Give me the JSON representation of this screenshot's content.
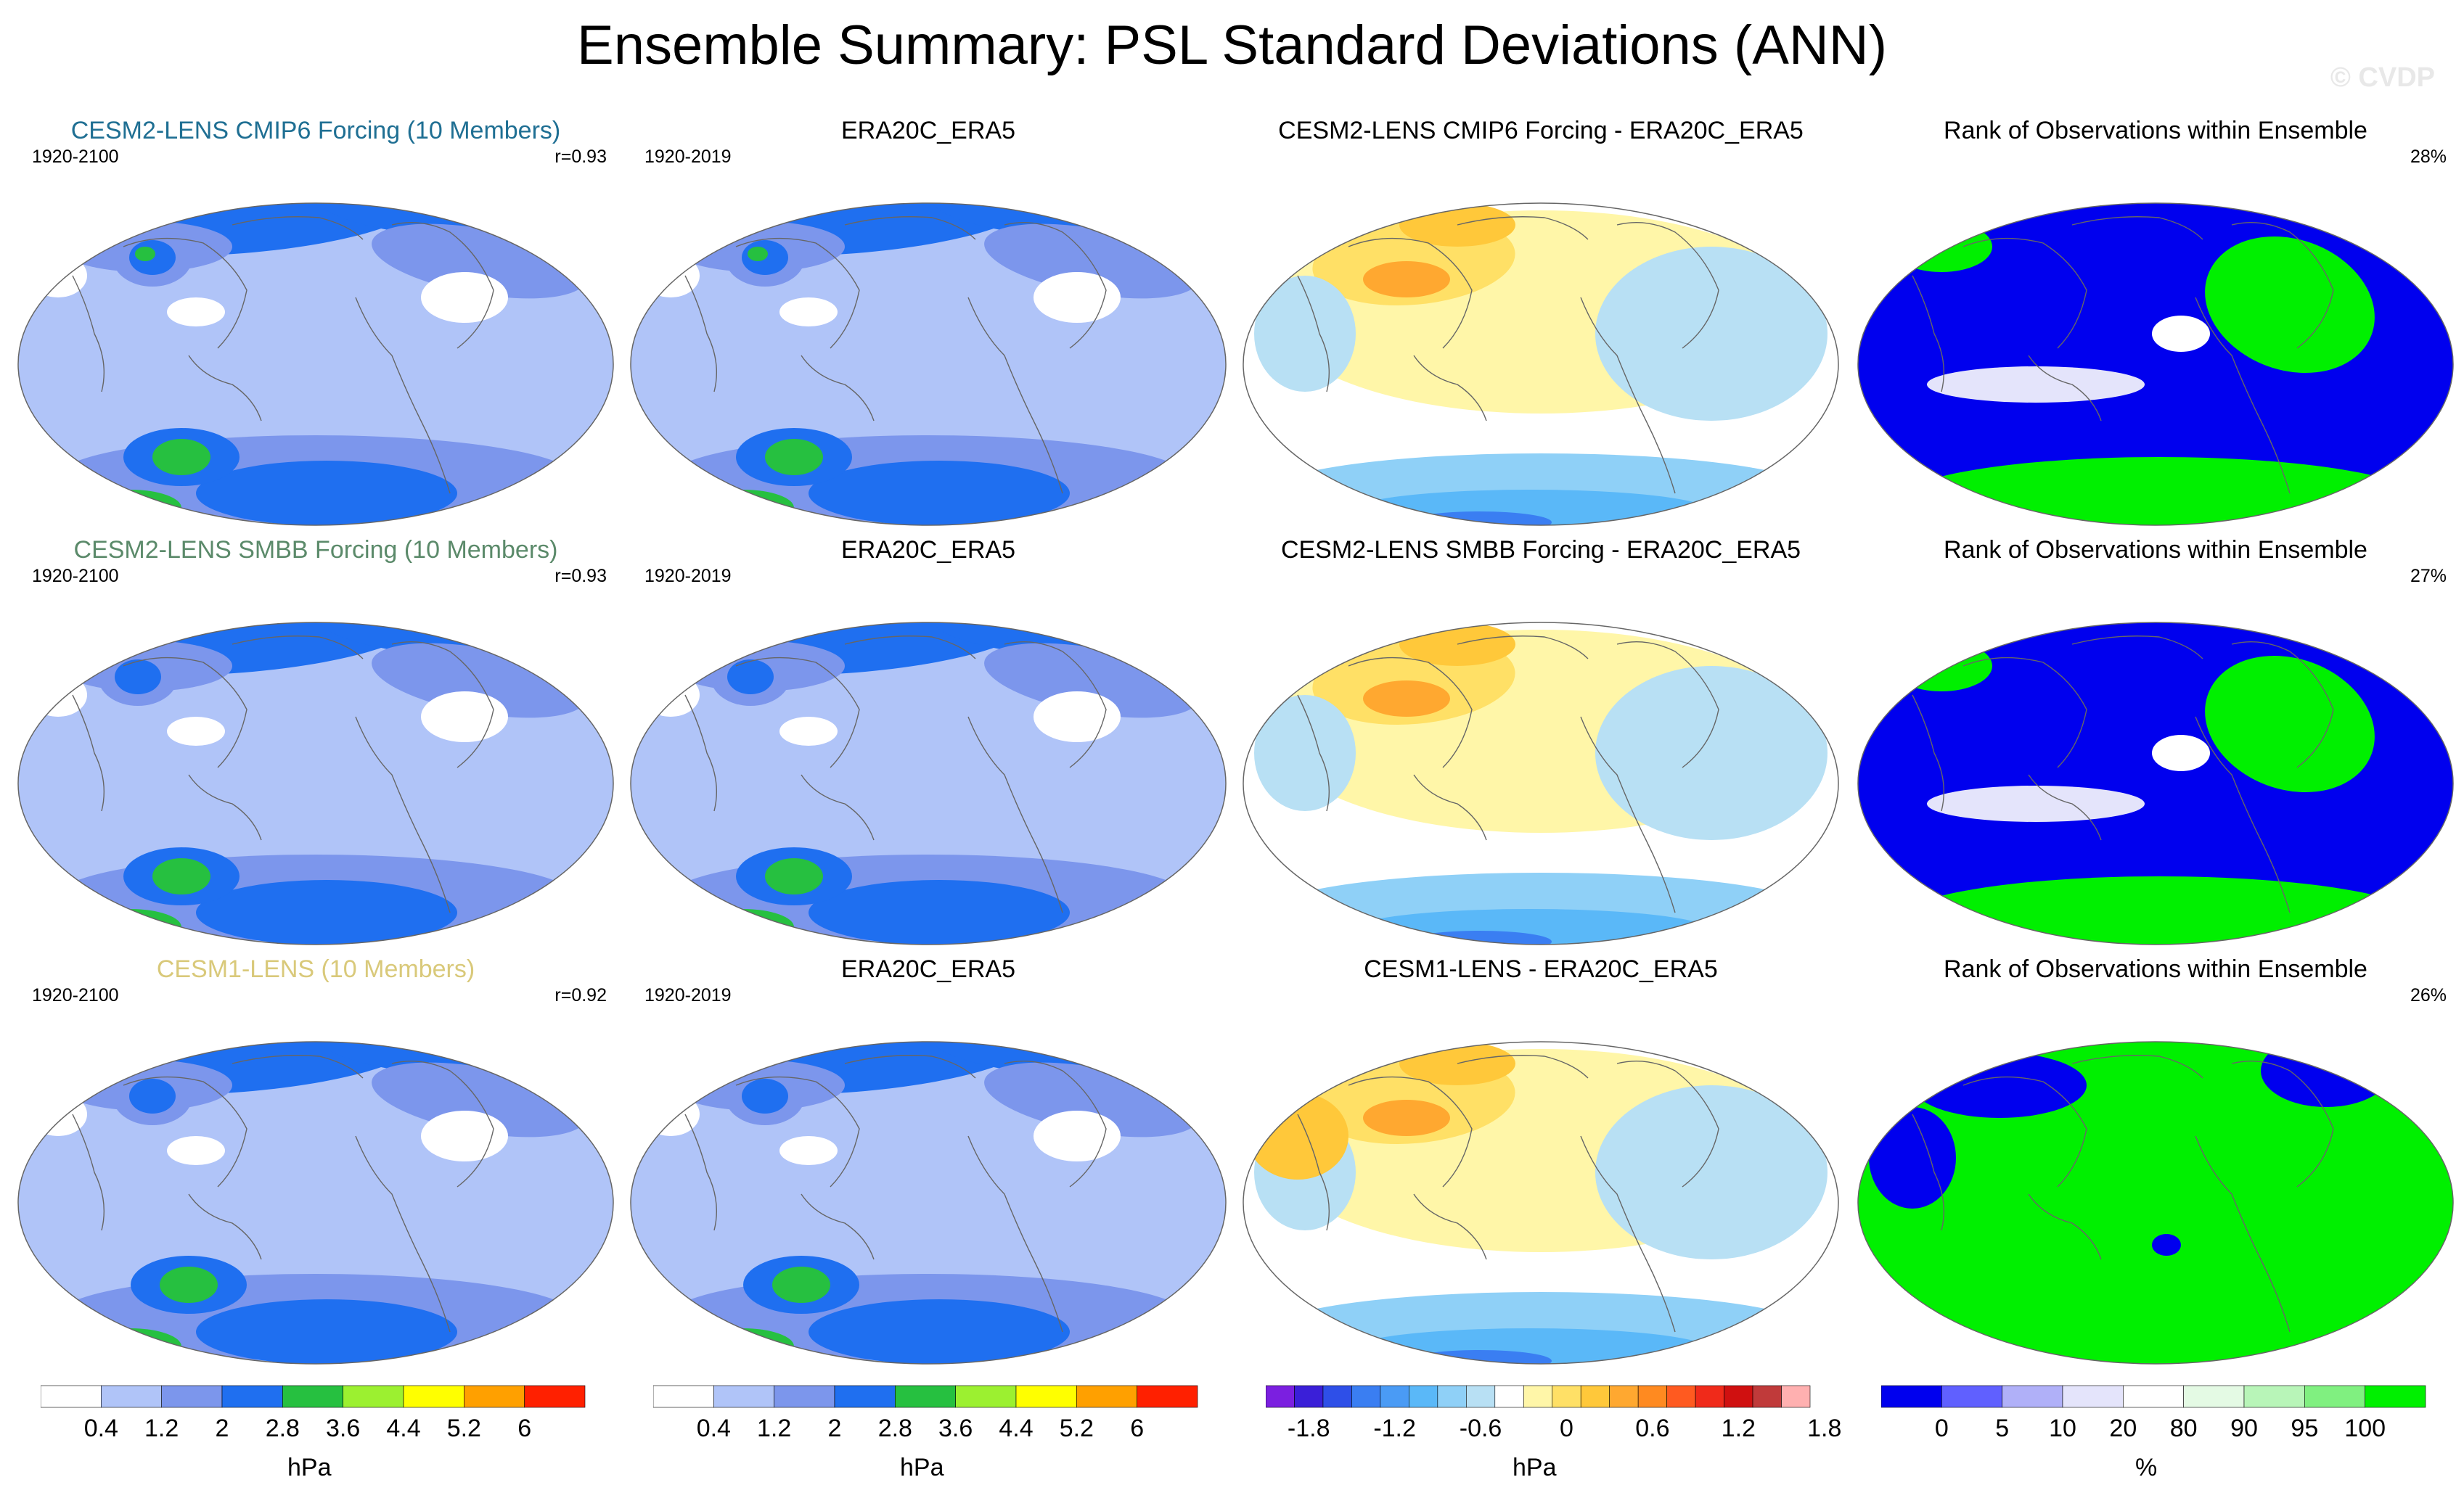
{
  "title": "Ensemble Summary: PSL Standard Deviations (ANN)",
  "watermark": "© CVDP",
  "colors": {
    "blue_title": "#1f6f93",
    "green_title": "#5b8a6a",
    "gold_title": "#d9c97a",
    "std": [
      "#ffffff",
      "#b0c4f8",
      "#7c96ec",
      "#1f6ff0",
      "#26c040",
      "#9cf030",
      "#ffff00",
      "#ffa000",
      "#ff2000"
    ],
    "diff": [
      "#7b1fe0",
      "#3a1fd8",
      "#2e4fe8",
      "#3a7ef2",
      "#4a9bf5",
      "#5ab8f8",
      "#8fd0f7",
      "#b8e0f4",
      "#ffffff",
      "#fff6a8",
      "#ffe066",
      "#ffc83a",
      "#ffa830",
      "#ff8a20",
      "#ff5a20",
      "#f02a1a",
      "#d01010",
      "#c03a3a",
      "#ffb0b0"
    ],
    "rank": [
      "#0000ee",
      "#6060ff",
      "#b0b0f8",
      "#e4e4fb",
      "#ffffff",
      "#e4fae4",
      "#b8f5b8",
      "#80f080",
      "#00f000"
    ]
  },
  "rows": [
    {
      "model": {
        "title": "CESM2-LENS CMIP6 Forcing (10 Members)",
        "period": "1920-2100",
        "corr": "r=0.93"
      },
      "obs": {
        "title": "ERA20C_ERA5",
        "period": "1920-2019"
      },
      "diff": {
        "title": "CESM2-LENS CMIP6 Forcing - ERA20C_ERA5"
      },
      "rank": {
        "title": "Rank of Observations within Ensemble",
        "pct": "28%"
      }
    },
    {
      "model": {
        "title": "CESM2-LENS SMBB Forcing (10 Members)",
        "period": "1920-2100",
        "corr": "r=0.93"
      },
      "obs": {
        "title": "ERA20C_ERA5",
        "period": "1920-2019"
      },
      "diff": {
        "title": "CESM2-LENS SMBB Forcing - ERA20C_ERA5"
      },
      "rank": {
        "title": "Rank of Observations within Ensemble",
        "pct": "27%"
      }
    },
    {
      "model": {
        "title": "CESM1-LENS (10 Members)",
        "period": "1920-2100",
        "corr": "r=0.92"
      },
      "obs": {
        "title": "ERA20C_ERA5",
        "period": "1920-2019"
      },
      "diff": {
        "title": "CESM1-LENS - ERA20C_ERA5"
      },
      "rank": {
        "title": "Rank of Observations within Ensemble",
        "pct": "26%"
      }
    }
  ],
  "colorbars": {
    "std": {
      "ticks": [
        "0.4",
        "1.2",
        "2",
        "2.8",
        "3.6",
        "4.4",
        "5.2",
        "6"
      ],
      "unit": "hPa"
    },
    "diff": {
      "ticks": [
        "-1.8",
        "-1.2",
        "-0.6",
        "0",
        "0.6",
        "1.2",
        "1.8"
      ],
      "unit": "hPa"
    },
    "rank": {
      "ticks": [
        "0",
        "5",
        "10",
        "20",
        "80",
        "90",
        "95",
        "100"
      ],
      "unit": "%"
    }
  },
  "chart_data": [
    {
      "type": "heatmap",
      "title": "Ensemble Summary: PSL Standard Deviations (ANN)",
      "panels": [
        {
          "row": 1,
          "col": 1,
          "title": "CESM2-LENS CMIP6 Forcing (10 Members)",
          "period": "1920-2100",
          "pattern_correlation": 0.93,
          "units": "hPa"
        },
        {
          "row": 1,
          "col": 2,
          "title": "ERA20C_ERA5",
          "period": "1920-2019",
          "units": "hPa"
        },
        {
          "row": 1,
          "col": 3,
          "title": "CESM2-LENS CMIP6 Forcing - ERA20C_ERA5",
          "units": "hPa"
        },
        {
          "row": 1,
          "col": 4,
          "title": "Rank of Observations within Ensemble",
          "summary_percent": 28,
          "units": "%"
        },
        {
          "row": 2,
          "col": 1,
          "title": "CESM2-LENS SMBB Forcing (10 Members)",
          "period": "1920-2100",
          "pattern_correlation": 0.93,
          "units": "hPa"
        },
        {
          "row": 2,
          "col": 2,
          "title": "ERA20C_ERA5",
          "period": "1920-2019",
          "units": "hPa"
        },
        {
          "row": 2,
          "col": 3,
          "title": "CESM2-LENS SMBB Forcing - ERA20C_ERA5",
          "units": "hPa"
        },
        {
          "row": 2,
          "col": 4,
          "title": "Rank of Observations within Ensemble",
          "summary_percent": 27,
          "units": "%"
        },
        {
          "row": 3,
          "col": 1,
          "title": "CESM1-LENS (10 Members)",
          "period": "1920-2100",
          "pattern_correlation": 0.92,
          "units": "hPa"
        },
        {
          "row": 3,
          "col": 2,
          "title": "ERA20C_ERA5",
          "period": "1920-2019",
          "units": "hPa"
        },
        {
          "row": 3,
          "col": 3,
          "title": "CESM1-LENS - ERA20C_ERA5",
          "units": "hPa"
        },
        {
          "row": 3,
          "col": 4,
          "title": "Rank of Observations within Ensemble",
          "summary_percent": 26,
          "units": "%"
        }
      ],
      "colorbars": [
        {
          "name": "std",
          "levels": [
            0.4,
            1.2,
            2,
            2.8,
            3.6,
            4.4,
            5.2,
            6
          ],
          "units": "hPa"
        },
        {
          "name": "diff",
          "levels": [
            -1.8,
            -1.2,
            -0.6,
            0,
            0.6,
            1.2,
            1.8
          ],
          "units": "hPa"
        },
        {
          "name": "rank",
          "levels": [
            0,
            5,
            10,
            20,
            80,
            90,
            95,
            100
          ],
          "units": "%"
        }
      ]
    }
  ]
}
